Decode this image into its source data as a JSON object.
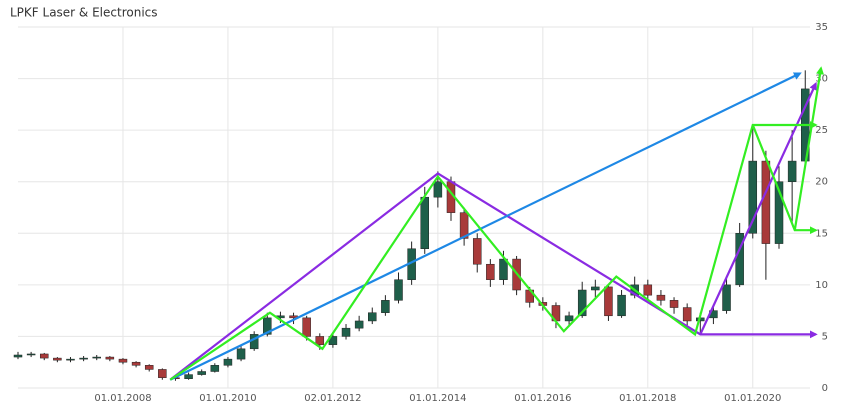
{
  "chart_data": {
    "type": "candlestick",
    "title": "LPKF Laser & Electronics",
    "x": [
      2006.0,
      2006.25,
      2006.5,
      2006.75,
      2007.0,
      2007.25,
      2007.5,
      2007.75,
      2008.0,
      2008.25,
      2008.5,
      2008.75,
      2009.0,
      2009.25,
      2009.5,
      2009.75,
      2010.0,
      2010.25,
      2010.5,
      2010.75,
      2011.0,
      2011.25,
      2011.5,
      2011.75,
      2012.0,
      2012.25,
      2012.5,
      2012.75,
      2013.0,
      2013.25,
      2013.5,
      2013.75,
      2014.0,
      2014.25,
      2014.5,
      2014.75,
      2015.0,
      2015.25,
      2015.5,
      2015.75,
      2016.0,
      2016.25,
      2016.5,
      2016.75,
      2017.0,
      2017.25,
      2017.5,
      2017.75,
      2018.0,
      2018.25,
      2018.5,
      2018.75,
      2019.0,
      2019.25,
      2019.5,
      2019.75,
      2020.0,
      2020.25,
      2020.5,
      2020.75,
      2021.0
    ],
    "open": [
      3.0,
      3.2,
      3.3,
      2.9,
      2.7,
      2.8,
      2.9,
      3.0,
      2.8,
      2.5,
      2.2,
      1.8,
      1.0,
      0.9,
      1.3,
      1.6,
      2.2,
      2.8,
      3.8,
      5.2,
      6.8,
      7.0,
      6.8,
      5.0,
      4.2,
      5.0,
      5.8,
      6.5,
      7.3,
      8.5,
      10.5,
      13.5,
      18.5,
      20.0,
      17.0,
      14.5,
      12.0,
      10.5,
      12.5,
      9.5,
      8.3,
      8.0,
      6.5,
      7.0,
      9.5,
      9.8,
      7.0,
      9.0,
      10.0,
      9.0,
      8.5,
      7.8,
      6.5,
      6.8,
      7.5,
      10.0,
      15.0,
      22.0,
      14.0,
      20.0,
      22.0
    ],
    "high": [
      3.5,
      3.5,
      3.4,
      3.0,
      3.0,
      3.1,
      3.2,
      3.1,
      2.9,
      2.6,
      2.3,
      1.9,
      1.2,
      1.5,
      1.8,
      2.4,
      3.0,
      4.1,
      5.5,
      7.3,
      7.4,
      7.3,
      7.0,
      5.3,
      5.4,
      6.2,
      7.0,
      7.8,
      9.0,
      11.2,
      14.2,
      19.5,
      21.0,
      20.5,
      17.5,
      15.0,
      12.5,
      13.3,
      12.8,
      9.8,
      8.8,
      8.3,
      7.4,
      10.3,
      10.5,
      10.0,
      9.5,
      10.8,
      10.5,
      9.5,
      8.8,
      8.2,
      7.3,
      8.0,
      10.8,
      16.0,
      25.5,
      23.0,
      21.5,
      25.0,
      30.8
    ],
    "low": [
      2.8,
      3.0,
      2.7,
      2.5,
      2.5,
      2.6,
      2.7,
      2.6,
      2.3,
      2.0,
      1.6,
      0.8,
      0.7,
      0.8,
      1.2,
      1.5,
      2.0,
      2.6,
      3.6,
      5.0,
      6.3,
      6.2,
      4.6,
      3.7,
      3.9,
      4.7,
      5.5,
      6.2,
      7.0,
      8.2,
      10.0,
      13.0,
      17.5,
      16.2,
      13.8,
      11.2,
      9.8,
      10.0,
      9.0,
      7.8,
      7.5,
      5.8,
      6.0,
      6.8,
      8.8,
      6.5,
      6.8,
      8.7,
      8.5,
      8.0,
      7.2,
      5.8,
      5.2,
      6.2,
      7.2,
      9.8,
      14.5,
      10.5,
      13.5,
      16.0,
      21.5
    ],
    "close": [
      3.2,
      3.3,
      2.9,
      2.7,
      2.8,
      2.9,
      3.0,
      2.8,
      2.5,
      2.2,
      1.8,
      1.0,
      0.9,
      1.3,
      1.6,
      2.2,
      2.8,
      3.8,
      5.2,
      6.8,
      7.0,
      6.8,
      5.0,
      4.2,
      5.0,
      5.8,
      6.5,
      7.3,
      8.5,
      10.5,
      13.5,
      18.5,
      20.0,
      17.0,
      14.5,
      12.0,
      10.5,
      12.5,
      9.5,
      8.3,
      8.0,
      6.5,
      7.0,
      9.5,
      9.8,
      7.0,
      9.0,
      10.0,
      9.0,
      8.5,
      7.8,
      6.5,
      6.8,
      7.5,
      10.0,
      15.0,
      22.0,
      14.0,
      20.0,
      22.0,
      29.0
    ],
    "up_color": "#1f5f4a",
    "down_color": "#a83a3a",
    "xlim": [
      2006.0,
      2021.3
    ],
    "ylim": [
      0,
      35
    ],
    "xticks": [
      {
        "value": 2008,
        "label": "01.01.2008"
      },
      {
        "value": 2010,
        "label": "01.01.2010"
      },
      {
        "value": 2012,
        "label": "02.01.2012"
      },
      {
        "value": 2014,
        "label": "01.01.2014"
      },
      {
        "value": 2016,
        "label": "01.01.2016"
      },
      {
        "value": 2018,
        "label": "01.01.2018"
      },
      {
        "value": 2020,
        "label": "01.01.2020"
      }
    ],
    "yticks": [
      0,
      5,
      10,
      15,
      20,
      25,
      30,
      35
    ],
    "grid": true,
    "annotations": [
      {
        "color": "#8a2be2",
        "x": [
          2008.9,
          2014.0,
          2019.0,
          2021.2
        ],
        "y": [
          0.8,
          20.8,
          5.2,
          5.2
        ]
      },
      {
        "color": "#8a2be2",
        "x": [
          2019.0,
          2021.2
        ],
        "y": [
          5.2,
          29.5
        ]
      },
      {
        "color": "#1e88e5",
        "x": [
          2008.9,
          2020.9
        ],
        "y": [
          0.8,
          30.5
        ]
      },
      {
        "color": "#33ee22",
        "x": [
          2008.9,
          2010.8,
          2011.8,
          2014.0,
          2016.4,
          2017.4,
          2018.9,
          2020.0,
          2021.2
        ],
        "y": [
          0.8,
          7.3,
          3.8,
          20.5,
          5.5,
          10.8,
          5.2,
          25.5,
          25.5
        ]
      },
      {
        "color": "#33ee22",
        "x": [
          2020.0,
          2020.8,
          2021.2
        ],
        "y": [
          25.5,
          15.3,
          15.3
        ]
      },
      {
        "color": "#33ee22",
        "x": [
          2020.8,
          2021.3
        ],
        "y": [
          15.3,
          31.0
        ]
      }
    ]
  }
}
